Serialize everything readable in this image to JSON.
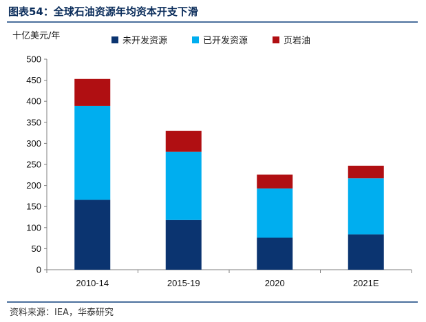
{
  "header": {
    "figure_label": "图表54：",
    "figure_title": "全球石油资源年均资本开支下滑"
  },
  "source_note": "资料来源：IEA，华泰研究",
  "chart_data": {
    "type": "bar",
    "stacked": true,
    "ylabel": "十亿美元/年",
    "categories": [
      "2010-14",
      "2015-19",
      "2020",
      "2021E"
    ],
    "ylim": [
      0,
      500
    ],
    "yticks": [
      0,
      50,
      100,
      150,
      200,
      250,
      300,
      350,
      400,
      450,
      500
    ],
    "grid": false,
    "legend_position": "top",
    "series": [
      {
        "name": "未开发资源",
        "color": "#0b3470",
        "values": [
          166,
          118,
          76,
          84
        ]
      },
      {
        "name": "已开发资源",
        "color": "#00aeef",
        "values": [
          223,
          162,
          117,
          133
        ]
      },
      {
        "name": "页岩油",
        "color": "#b00f12",
        "values": [
          64,
          50,
          33,
          30
        ]
      }
    ]
  }
}
